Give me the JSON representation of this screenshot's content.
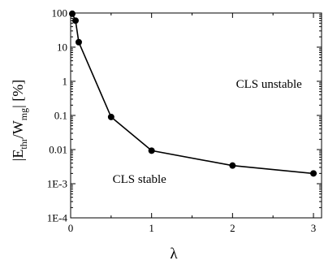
{
  "chart_data": {
    "type": "line",
    "title": "",
    "xlabel": "λ",
    "ylabel": {
      "prefix": "|E",
      "sub1": "thr",
      "mid": "/W",
      "sub2": "mg",
      "suffix": "| [%]"
    },
    "x_scale": "linear",
    "y_scale": "log",
    "xlim": [
      0,
      3.1
    ],
    "ylim": [
      0.0001,
      100
    ],
    "x_ticks": [
      {
        "value": 0,
        "label": "0"
      },
      {
        "value": 1,
        "label": "1"
      },
      {
        "value": 2,
        "label": "2"
      },
      {
        "value": 3,
        "label": "3"
      }
    ],
    "y_ticks": [
      {
        "value": 100,
        "label": "100"
      },
      {
        "value": 10,
        "label": "10"
      },
      {
        "value": 1,
        "label": "1"
      },
      {
        "value": 0.1,
        "label": "0.1"
      },
      {
        "value": 0.01,
        "label": "0.01"
      },
      {
        "value": 0.001,
        "label": "1E-3"
      },
      {
        "value": 0.0001,
        "label": "1E-4"
      }
    ],
    "series": [
      {
        "x": [
          0.02,
          0.06,
          0.1,
          0.5,
          1,
          2,
          3
        ],
        "y": [
          95,
          60,
          14,
          0.09,
          0.0093,
          0.0034,
          0.002
        ]
      }
    ],
    "annotations": [
      {
        "text": "CLS unstable",
        "x": 2.45,
        "y": 0.65
      },
      {
        "text": "CLS stable",
        "x": 0.85,
        "y": 0.00105
      }
    ],
    "grid": false,
    "legend": "none",
    "colors": {
      "line": "#000000",
      "marker": "#000000",
      "axis": "#000000"
    }
  }
}
